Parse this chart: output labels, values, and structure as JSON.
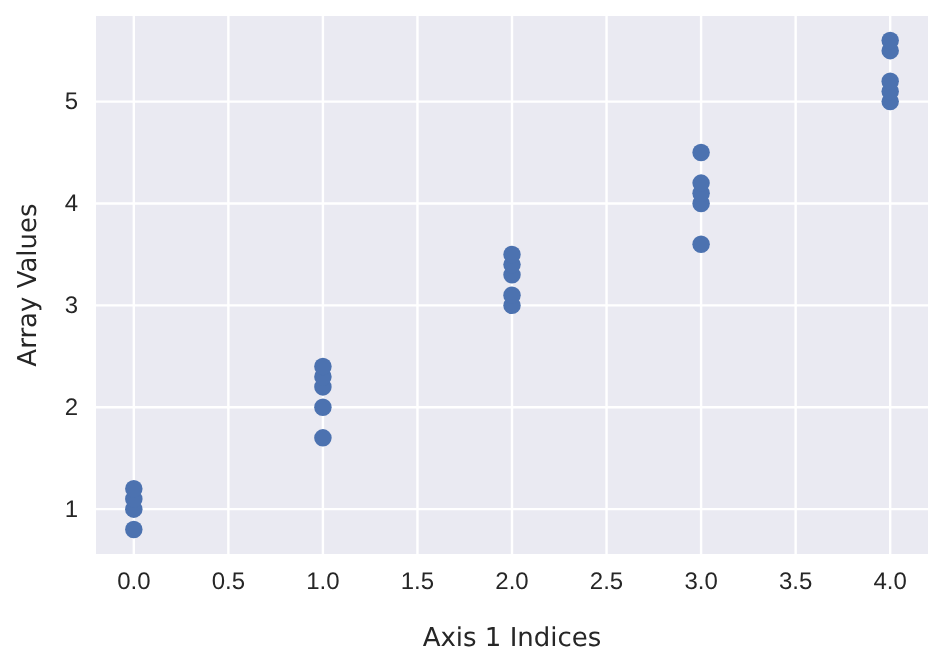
{
  "chart_data": {
    "type": "scatter",
    "xlabel": "Axis 1 Indices",
    "ylabel": "Array Values",
    "x": [
      0,
      0,
      0,
      0,
      1,
      1,
      1,
      1,
      1,
      2,
      2,
      2,
      2,
      2,
      3,
      3,
      3,
      3,
      3,
      4,
      4,
      4,
      4,
      4
    ],
    "series": [
      {
        "color": "#4c72b0",
        "values": [
          0.8,
          1.0,
          1.1,
          1.2,
          1.7,
          2.0,
          2.2,
          2.3,
          2.4,
          3.0,
          3.1,
          3.3,
          3.4,
          3.5,
          3.6,
          4.0,
          4.1,
          4.2,
          4.5,
          5.0,
          5.1,
          5.2,
          5.5,
          5.6
        ]
      }
    ],
    "xlim": [
      -0.2,
      4.2
    ],
    "ylim": [
      0.56,
      5.84
    ],
    "xticks": [
      {
        "value": 0,
        "label": "0.0"
      },
      {
        "value": 0.5,
        "label": "0.5"
      },
      {
        "value": 1,
        "label": "1.0"
      },
      {
        "value": 1.5,
        "label": "1.5"
      },
      {
        "value": 2,
        "label": "2.0"
      },
      {
        "value": 2.5,
        "label": "2.5"
      },
      {
        "value": 3,
        "label": "3.0"
      },
      {
        "value": 3.5,
        "label": "3.5"
      },
      {
        "value": 4,
        "label": "4.0"
      }
    ],
    "yticks": [
      1,
      2,
      3,
      4,
      5
    ],
    "grid": true,
    "marker": "circle"
  }
}
